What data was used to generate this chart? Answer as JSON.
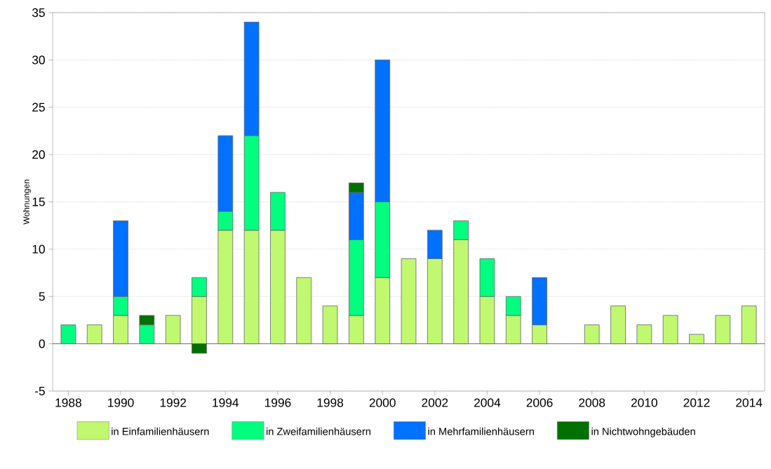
{
  "chart_data": {
    "type": "bar",
    "stacked": true,
    "ylabel": "Wohnungen",
    "x": [
      1988,
      1989,
      1990,
      1991,
      1992,
      1993,
      1994,
      1995,
      1996,
      1997,
      1998,
      1999,
      2000,
      2001,
      2002,
      2003,
      2004,
      2005,
      2006,
      2007,
      2008,
      2009,
      2010,
      2011,
      2012,
      2013,
      2014
    ],
    "xlim": [
      1987.4,
      2014.6
    ],
    "xticks": [
      1988,
      1990,
      1992,
      1994,
      1996,
      1998,
      2000,
      2002,
      2004,
      2006,
      2008,
      2010,
      2012,
      2014
    ],
    "ylim": [
      -5,
      35
    ],
    "yticks": [
      -5,
      0,
      5,
      10,
      15,
      20,
      25,
      30,
      35
    ],
    "grid": "y",
    "legend": "bottom",
    "series": [
      {
        "name": "in Einfamilienhäusern",
        "color": "#c0f870",
        "values": [
          0,
          2,
          3,
          0,
          3,
          5,
          12,
          12,
          12,
          7,
          4,
          3,
          7,
          9,
          9,
          11,
          5,
          3,
          2,
          0,
          2,
          4,
          2,
          3,
          1,
          3,
          4
        ]
      },
      {
        "name": "in Zweifamilienhäusern",
        "color": "#00ff7f",
        "values": [
          2,
          0,
          2,
          2,
          0,
          2,
          2,
          10,
          4,
          0,
          0,
          8,
          8,
          0,
          0,
          2,
          4,
          2,
          0,
          0,
          0,
          0,
          0,
          0,
          0,
          0,
          0
        ]
      },
      {
        "name": "in Mehrfamilienhäusern",
        "color": "#0070ff",
        "values": [
          0,
          0,
          8,
          0,
          0,
          0,
          8,
          12,
          0,
          0,
          0,
          5,
          15,
          0,
          3,
          0,
          0,
          0,
          5,
          0,
          0,
          0,
          0,
          0,
          0,
          0,
          0
        ]
      },
      {
        "name": "in Nichtwohngebäuden",
        "color": "#007000",
        "values": [
          0,
          0,
          0,
          1,
          0,
          -1,
          0,
          0,
          0,
          0,
          0,
          1,
          0,
          0,
          0,
          0,
          0,
          0,
          0,
          0,
          0,
          0,
          0,
          0,
          0,
          0,
          0
        ]
      }
    ]
  }
}
